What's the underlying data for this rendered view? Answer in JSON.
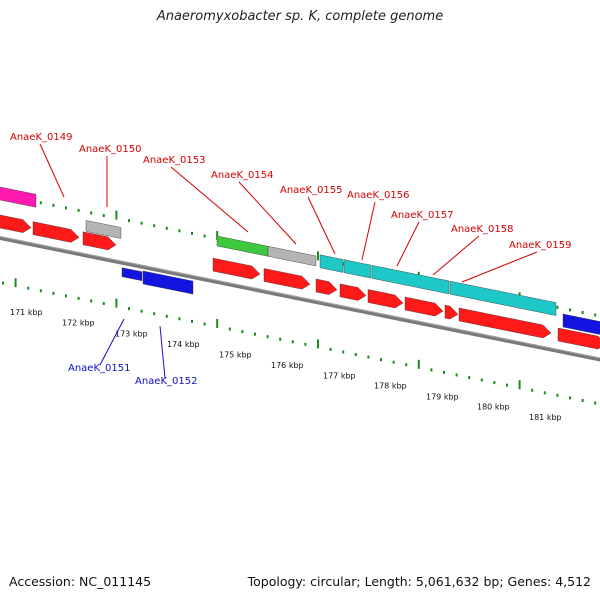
{
  "title": "Anaeromyxobacter sp. K, complete genome",
  "footer": {
    "accession": "Accession: NC_011145",
    "summary": "Topology: circular; Length: 5,061,632 bp; Genes: 4,512"
  },
  "colors": {
    "forward_label": "#d40000",
    "reverse_label": "#1010c0",
    "tick": "#1a8a1a",
    "backbone": "#7a7a7a",
    "cds": "#ff1a1a",
    "rrna": "#1ec8c8",
    "trna": "#3ec83e",
    "misc": "#b4b4b4",
    "reverse_cds": "#1414e0",
    "pink": "#ff1ab0"
  },
  "kbp_ticks": [
    "171 kbp",
    "172 kbp",
    "173 kbp",
    "174 kbp",
    "175 kbp",
    "176 kbp",
    "177 kbp",
    "178 kbp",
    "179 kbp",
    "180 kbp",
    "181 kbp"
  ],
  "forward_labels": [
    "AnaeK_0149",
    "AnaeK_0150",
    "AnaeK_0153",
    "AnaeK_0154",
    "AnaeK_0155",
    "AnaeK_0156",
    "AnaeK_0157",
    "AnaeK_0158",
    "AnaeK_0159"
  ],
  "reverse_labels": [
    "AnaeK_0151",
    "AnaeK_0152"
  ]
}
